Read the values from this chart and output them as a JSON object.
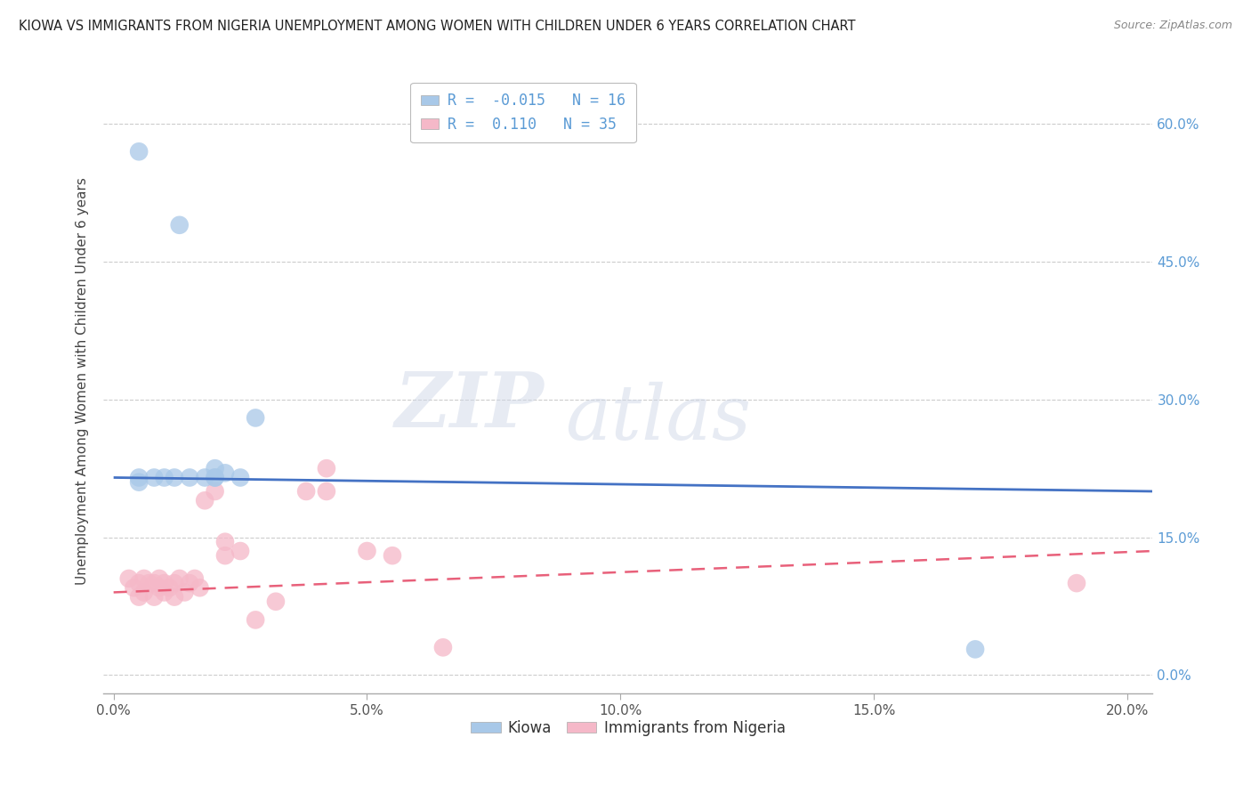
{
  "title": "KIOWA VS IMMIGRANTS FROM NIGERIA UNEMPLOYMENT AMONG WOMEN WITH CHILDREN UNDER 6 YEARS CORRELATION CHART",
  "source": "Source: ZipAtlas.com",
  "ylabel": "Unemployment Among Women with Children Under 6 years",
  "xlabel_ticks": [
    "0.0%",
    "5.0%",
    "10.0%",
    "15.0%",
    "20.0%"
  ],
  "xlabel_vals": [
    0.0,
    0.05,
    0.1,
    0.15,
    0.2
  ],
  "ylabel_ticks": [
    "0.0%",
    "15.0%",
    "30.0%",
    "45.0%",
    "60.0%"
  ],
  "ylabel_vals": [
    0.0,
    0.15,
    0.3,
    0.45,
    0.6
  ],
  "xlim": [
    -0.002,
    0.205
  ],
  "ylim": [
    -0.02,
    0.66
  ],
  "kiowa_R": -0.015,
  "kiowa_N": 16,
  "nigeria_R": 0.11,
  "nigeria_N": 35,
  "kiowa_color": "#A8C8E8",
  "nigeria_color": "#F5B8C8",
  "kiowa_line_color": "#4472C4",
  "nigeria_line_color": "#E8607A",
  "legend_label_kiowa": "Kiowa",
  "legend_label_nigeria": "Immigrants from Nigeria",
  "watermark_zip": "ZIP",
  "watermark_atlas": "atlas",
  "kiowa_x": [
    0.005,
    0.013,
    0.005,
    0.008,
    0.01,
    0.012,
    0.015,
    0.018,
    0.02,
    0.022,
    0.02,
    0.025,
    0.028,
    0.02,
    0.17,
    0.005
  ],
  "kiowa_y": [
    0.57,
    0.49,
    0.21,
    0.215,
    0.215,
    0.215,
    0.215,
    0.215,
    0.215,
    0.22,
    0.225,
    0.215,
    0.28,
    0.215,
    0.028,
    0.215
  ],
  "nigeria_x": [
    0.003,
    0.004,
    0.005,
    0.005,
    0.006,
    0.006,
    0.007,
    0.008,
    0.008,
    0.009,
    0.009,
    0.01,
    0.01,
    0.011,
    0.012,
    0.012,
    0.013,
    0.014,
    0.015,
    0.016,
    0.017,
    0.018,
    0.02,
    0.022,
    0.022,
    0.025,
    0.028,
    0.032,
    0.038,
    0.042,
    0.042,
    0.05,
    0.055,
    0.065,
    0.19
  ],
  "nigeria_y": [
    0.105,
    0.095,
    0.085,
    0.1,
    0.09,
    0.105,
    0.1,
    0.085,
    0.1,
    0.095,
    0.105,
    0.09,
    0.1,
    0.095,
    0.1,
    0.085,
    0.105,
    0.09,
    0.1,
    0.105,
    0.095,
    0.19,
    0.2,
    0.13,
    0.145,
    0.135,
    0.06,
    0.08,
    0.2,
    0.225,
    0.2,
    0.135,
    0.13,
    0.03,
    0.1
  ],
  "kiowa_trend_x": [
    0.0,
    0.205
  ],
  "kiowa_trend_y": [
    0.215,
    0.2
  ],
  "nigeria_trend_x": [
    0.0,
    0.205
  ],
  "nigeria_trend_y": [
    0.09,
    0.135
  ],
  "background_color": "#FFFFFF",
  "plot_bg_color": "#FFFFFF",
  "grid_color": "#CCCCCC"
}
